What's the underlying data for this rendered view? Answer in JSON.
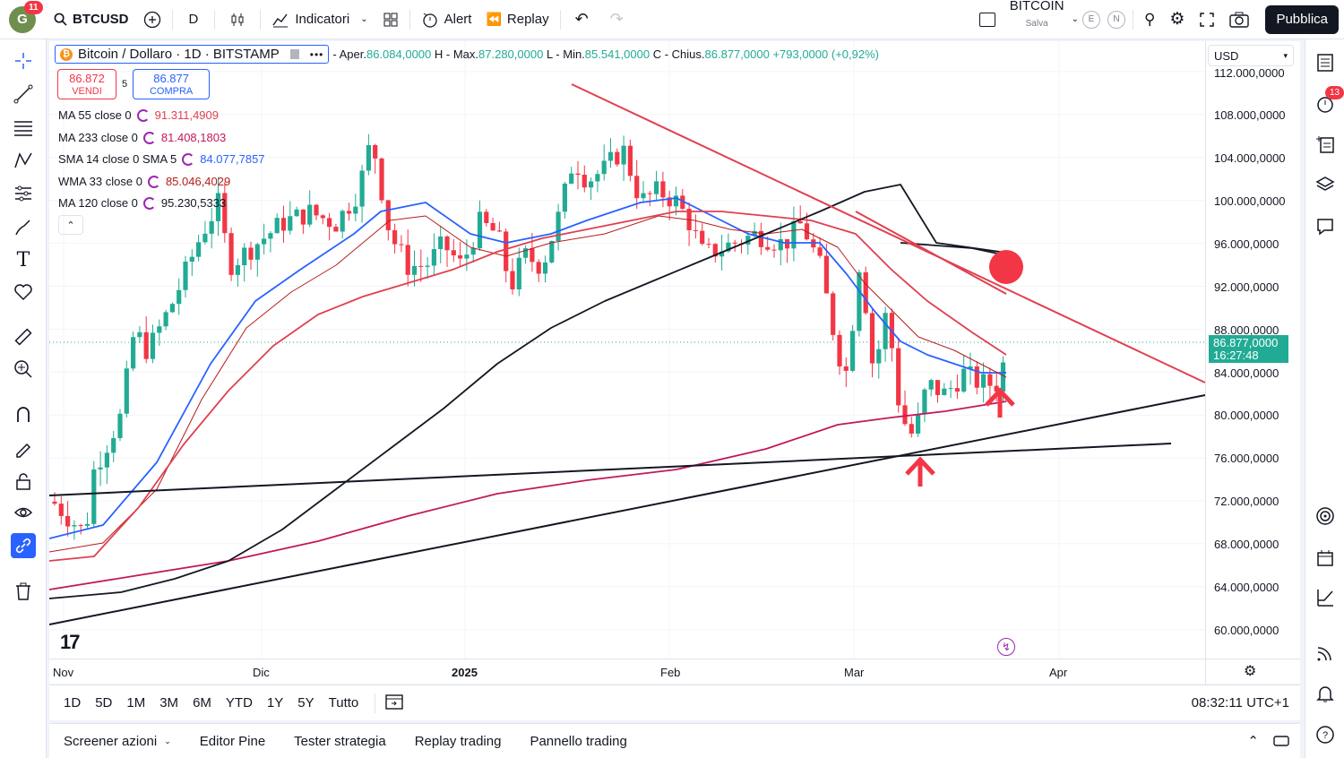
{
  "topbar": {
    "avatar_letter": "G",
    "avatar_badge": "11",
    "symbol": "BTCUSD",
    "interval": "D",
    "indicators": "Indicatori",
    "alert": "Alert",
    "replay": "Replay",
    "layout_name": "BITCOIN",
    "layout_sub": "Salva",
    "layout_e": "E",
    "layout_n": "N",
    "publish": "Pubblica"
  },
  "legend": {
    "title": "Bitcoin / Dollaro · 1D · BITSTAMP",
    "open_label": "- Aper.",
    "open": "86.084,0000",
    "high_label": "H - Max.",
    "high": "87.280,0000",
    "low_label": "L - Min.",
    "low": "85.541,0000",
    "close_label": "C - Chius.",
    "close": "86.877,0000",
    "change": "+793,0000 (+0,92%)",
    "sell_price": "86.872",
    "sell_label": "VENDI",
    "spread": "5",
    "buy_price": "86.877",
    "buy_label": "COMPRA"
  },
  "indicators": [
    {
      "name": "MA 55 close 0",
      "value": "91.311,4909",
      "color": "#e04050"
    },
    {
      "name": "MA 233 close 0",
      "value": "81.408,1803",
      "color": "#c2185b"
    },
    {
      "name": "SMA 14 close 0 SMA 5",
      "value": "84.077,7857",
      "color": "#2962ff"
    },
    {
      "name": "WMA 33 close 0",
      "value": "85.046,4029",
      "color": "#b71c1c"
    },
    {
      "name": "MA 120 close 0",
      "value": "95.230,5333",
      "color": "#131722"
    }
  ],
  "price_scale": {
    "currency": "USD",
    "labels": [
      "112.000,0000",
      "108.000,0000",
      "104.000,0000",
      "100.000,0000",
      "96.000,0000",
      "92.000,0000",
      "88.000,0000",
      "84.000,0000",
      "80.000,0000",
      "76.000,0000",
      "72.000,0000",
      "68.000,0000",
      "64.000,0000",
      "60.000,0000"
    ],
    "current_price": "86.877,0000",
    "countdown": "16:27:48"
  },
  "time_scale": [
    "Nov",
    "Dic",
    "2025",
    "Feb",
    "Mar",
    "Apr"
  ],
  "ranges": [
    "1D",
    "5D",
    "1M",
    "3M",
    "6M",
    "YTD",
    "1Y",
    "5Y",
    "Tutto"
  ],
  "clock": "08:32:11 UTC+1",
  "bottom": [
    "Screener azioni",
    "Editor Pine",
    "Tester strategia",
    "Replay trading",
    "Pannello trading"
  ],
  "right_badge": "13",
  "colors": {
    "up": "#22ab94",
    "down": "#f23645",
    "accent": "#2962ff"
  }
}
